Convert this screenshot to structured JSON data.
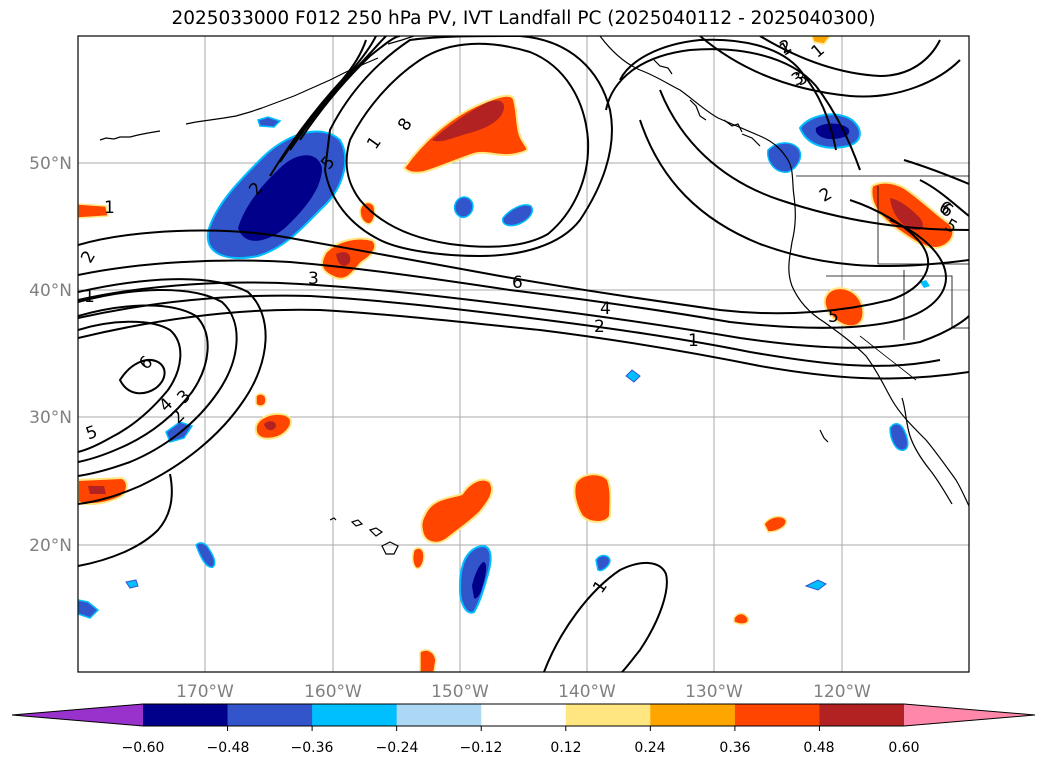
{
  "title": "2025033000 F012 250 hPa PV, IVT Landfall PC (2025040112 - 2025040300)",
  "map": {
    "lat_labels": [
      "50°N",
      "40°N",
      "30°N",
      "20°N"
    ],
    "lon_labels": [
      "170°W",
      "160°W",
      "150°W",
      "140°W",
      "130°W",
      "120°W"
    ],
    "gridlines": true
  },
  "contour_labels": [
    "1",
    "8",
    "5",
    "2",
    "1",
    "3",
    "2",
    "1",
    "6",
    "1",
    "3",
    "1",
    "6",
    "4",
    "2",
    "1",
    "5",
    "6",
    "4",
    "3",
    "2",
    "5",
    "1",
    "2",
    "3",
    "2",
    "6",
    "5"
  ],
  "colorbar": {
    "ticks": [
      "−0.60",
      "−0.48",
      "−0.36",
      "−0.24",
      "−0.12",
      "0.12",
      "0.24",
      "0.36",
      "0.48",
      "0.60"
    ],
    "colors": [
      "#9932cc",
      "#00008b",
      "#3355cc",
      "#00bfff",
      "#add8f5",
      "#ffffff",
      "#ffe680",
      "#ffa500",
      "#ff4500",
      "#b22222",
      "#ff88aa"
    ],
    "extend": "both"
  },
  "colors": {
    "contour": "#000000",
    "coast": "#000000",
    "grid": "#aaaaaa"
  }
}
